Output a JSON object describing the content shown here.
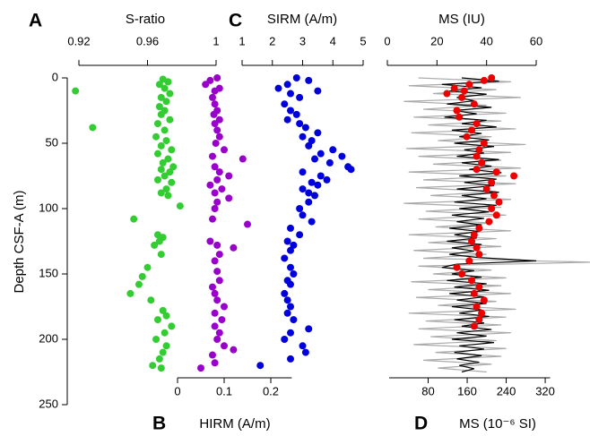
{
  "chart_data": [
    {
      "type": "scatter",
      "label": "A",
      "xlabel": "S-ratio",
      "ylabel": "Depth CSF-A (m)",
      "xlim": [
        0.92,
        1
      ],
      "xticks": [
        0.92,
        0.96,
        1
      ],
      "ylim": [
        0,
        250
      ],
      "yticks": [
        0,
        50,
        100,
        150,
        200,
        250
      ],
      "series": [
        {
          "color": "#33cc33",
          "y": [
            1,
            3,
            5,
            8,
            10,
            12,
            15,
            18,
            22,
            25,
            28,
            32,
            35,
            38,
            40,
            45,
            48,
            52,
            55,
            58,
            62,
            65,
            68,
            70,
            72,
            75,
            78,
            80,
            85,
            88,
            90,
            98,
            108,
            120,
            122,
            125,
            128,
            135,
            145,
            152,
            158,
            165,
            170,
            178,
            182,
            185,
            190,
            195,
            200,
            205,
            210,
            215,
            220,
            222
          ],
          "x": [
            0.969,
            0.972,
            0.967,
            0.97,
            0.918,
            0.973,
            0.968,
            0.971,
            0.967,
            0.97,
            0.968,
            0.973,
            0.966,
            0.928,
            0.97,
            0.965,
            0.971,
            0.968,
            0.974,
            0.966,
            0.972,
            0.969,
            0.975,
            0.968,
            0.973,
            0.97,
            0.966,
            0.974,
            0.971,
            0.968,
            0.972,
            0.979,
            0.952,
            0.966,
            0.969,
            0.967,
            0.964,
            0.968,
            0.96,
            0.957,
            0.955,
            0.95,
            0.962,
            0.969,
            0.971,
            0.966,
            0.974,
            0.97,
            0.965,
            0.971,
            0.969,
            0.967,
            0.963,
            0.968
          ]
        }
      ]
    },
    {
      "type": "scatter",
      "label": "B",
      "xlabel": "HIRM (A/m)",
      "xlim": [
        0,
        0.245
      ],
      "xticks": [
        0,
        0.1,
        0.2
      ],
      "ylim": [
        0,
        250
      ],
      "series": [
        {
          "color": "#9900cc",
          "y": [
            0,
            2,
            5,
            8,
            10,
            15,
            20,
            25,
            28,
            32,
            35,
            40,
            45,
            50,
            55,
            60,
            62,
            68,
            72,
            75,
            78,
            82,
            85,
            88,
            92,
            95,
            100,
            108,
            112,
            125,
            128,
            130,
            135,
            140,
            148,
            155,
            160,
            165,
            170,
            175,
            180,
            185,
            190,
            195,
            200,
            205,
            208,
            212,
            218,
            222
          ],
          "x": [
            0.085,
            0.07,
            0.06,
            0.09,
            0.08,
            0.075,
            0.08,
            0.085,
            0.078,
            0.09,
            0.08,
            0.085,
            0.09,
            0.082,
            0.1,
            0.075,
            0.14,
            0.08,
            0.09,
            0.11,
            0.085,
            0.07,
            0.095,
            0.08,
            0.11,
            0.085,
            0.08,
            0.075,
            0.15,
            0.07,
            0.085,
            0.12,
            0.09,
            0.08,
            0.085,
            0.09,
            0.075,
            0.08,
            0.085,
            0.1,
            0.08,
            0.095,
            0.08,
            0.09,
            0.085,
            0.1,
            0.12,
            0.075,
            0.08,
            0.05
          ]
        }
      ]
    },
    {
      "type": "scatter",
      "label": "C",
      "xlabel": "SIRM (A/m)",
      "xlim": [
        1,
        5
      ],
      "xticks": [
        1,
        2,
        3,
        4,
        5
      ],
      "ylim": [
        0,
        250
      ],
      "series": [
        {
          "color": "#0000dd",
          "y": [
            0,
            2,
            5,
            8,
            10,
            12,
            15,
            20,
            25,
            28,
            32,
            35,
            38,
            42,
            45,
            48,
            52,
            55,
            58,
            60,
            62,
            65,
            68,
            70,
            72,
            75,
            78,
            80,
            82,
            85,
            88,
            90,
            95,
            100,
            105,
            110,
            115,
            120,
            125,
            128,
            132,
            138,
            145,
            150,
            155,
            158,
            165,
            170,
            175,
            180,
            185,
            192,
            195,
            200,
            205,
            210,
            215,
            220
          ],
          "x": [
            2.8,
            3.2,
            2.5,
            2.2,
            3.5,
            2.6,
            2.9,
            2.4,
            2.6,
            2.8,
            2.5,
            2.9,
            3.1,
            3.5,
            3.0,
            3.3,
            3.2,
            4.0,
            3.6,
            4.3,
            3.4,
            3.9,
            4.5,
            4.6,
            3.0,
            3.6,
            3.8,
            3.3,
            3.5,
            3.0,
            3.2,
            3.4,
            3.2,
            2.9,
            3.0,
            3.3,
            2.6,
            2.9,
            2.5,
            2.7,
            2.6,
            2.4,
            2.6,
            2.7,
            2.5,
            2.6,
            2.4,
            2.5,
            2.6,
            2.5,
            2.7,
            3.2,
            2.6,
            2.4,
            3.0,
            3.1,
            2.6,
            1.6
          ]
        }
      ]
    },
    {
      "type": "line",
      "label": "D",
      "xlabel": "MS (10⁻⁶ SI)",
      "x2label": "MS (IU)",
      "xlim": [
        0,
        330
      ],
      "xticks": [
        80,
        160,
        240,
        320
      ],
      "x2lim": [
        0,
        60
      ],
      "x2ticks": [
        0,
        20,
        40,
        60
      ],
      "ylim": [
        0,
        250
      ],
      "series": [
        {
          "color": "#aaaaaa",
          "y": [
            0,
            3,
            6,
            9,
            12,
            15,
            18,
            21,
            24,
            27,
            30,
            33,
            36,
            39,
            42,
            45,
            48,
            51,
            54,
            57,
            60,
            63,
            66,
            69,
            72,
            75,
            78,
            81,
            84,
            87,
            90,
            93,
            96,
            99,
            102,
            105,
            108,
            111,
            114,
            117,
            120,
            123,
            126,
            129,
            132,
            135,
            138,
            141,
            144,
            147,
            150,
            153,
            156,
            159,
            162,
            165,
            168,
            171,
            174,
            177,
            180,
            183,
            186,
            189,
            192,
            195,
            198,
            201,
            204,
            207,
            210,
            213,
            216,
            219,
            222,
            225
          ],
          "x": [
            60,
            250,
            40,
            220,
            90,
            270,
            30,
            200,
            70,
            240,
            50,
            230,
            80,
            260,
            45,
            210,
            100,
            280,
            35,
            250,
            60,
            230,
            90,
            270,
            40,
            240,
            70,
            260,
            55,
            220,
            85,
            250,
            30,
            230,
            75,
            240,
            60,
            210,
            95,
            250,
            40,
            220,
            80,
            230,
            50,
            200,
            70,
            415,
            60,
            210,
            90,
            240,
            45,
            230,
            80,
            250,
            55,
            220,
            100,
            260,
            40,
            240,
            75,
            230,
            60,
            250,
            85,
            220,
            50,
            240,
            95,
            230,
            70,
            210,
            100,
            200
          ]
        },
        {
          "color": "#000000",
          "axis": "x2",
          "y": [
            0,
            2.5,
            5,
            7.5,
            10,
            12.5,
            15,
            17.5,
            20,
            22.5,
            25,
            27.5,
            30,
            32.5,
            35,
            37.5,
            40,
            42.5,
            45,
            47.5,
            50,
            52.5,
            55,
            57.5,
            60,
            62.5,
            65,
            67.5,
            70,
            72.5,
            75,
            77.5,
            80,
            82.5,
            85,
            87.5,
            90,
            92.5,
            95,
            97.5,
            100,
            102.5,
            105,
            107.5,
            110,
            112.5,
            115,
            117.5,
            120,
            122.5,
            125,
            127.5,
            130,
            132.5,
            135,
            137.5,
            140,
            142.5,
            145,
            147.5,
            150,
            152.5,
            155,
            157.5,
            160,
            162.5,
            165,
            167.5,
            170,
            172.5,
            175,
            177.5,
            180,
            182.5,
            185,
            187.5,
            190,
            192.5,
            195,
            197.5,
            200,
            202.5,
            205,
            207.5,
            210,
            212.5,
            215,
            217.5,
            220,
            222.5,
            225
          ],
          "x": [
            30,
            45,
            22,
            38,
            25,
            40,
            28,
            35,
            24,
            42,
            27,
            36,
            23,
            40,
            30,
            44,
            26,
            38,
            29,
            41,
            27,
            43,
            31,
            39,
            28,
            45,
            30,
            42,
            33,
            46,
            29,
            44,
            31,
            43,
            28,
            45,
            30,
            40,
            27,
            44,
            29,
            41,
            26,
            39,
            28,
            38,
            25,
            37,
            27,
            36,
            24,
            38,
            26,
            35,
            25,
            37,
            60,
            28,
            22,
            35,
            26,
            38,
            24,
            40,
            27,
            41,
            25,
            39,
            28,
            40,
            26,
            38,
            29,
            41,
            27,
            39,
            30,
            42,
            28,
            40,
            26,
            43,
            29,
            39,
            27,
            38,
            28,
            37,
            29,
            35,
            30
          ]
        },
        {
          "color": "#ee0000",
          "axis": "x2",
          "marker": true,
          "y": [
            0,
            2,
            5,
            8,
            10,
            12,
            15,
            20,
            25,
            30,
            35,
            40,
            45,
            50,
            55,
            60,
            65,
            70,
            72,
            75,
            80,
            85,
            90,
            95,
            100,
            105,
            110,
            115,
            120,
            125,
            130,
            135,
            140,
            145,
            150,
            155,
            160,
            165,
            170,
            175,
            180,
            185,
            190
          ],
          "x": [
            42,
            39,
            33,
            27,
            31,
            24,
            30,
            35,
            28,
            29,
            36,
            34,
            32,
            39,
            37,
            36,
            38,
            36,
            44,
            51,
            42,
            40,
            43,
            45,
            42,
            44,
            41,
            37,
            35,
            34,
            36,
            37,
            33,
            28,
            30,
            34,
            37,
            35,
            39,
            36,
            38,
            37,
            35
          ]
        }
      ]
    }
  ]
}
